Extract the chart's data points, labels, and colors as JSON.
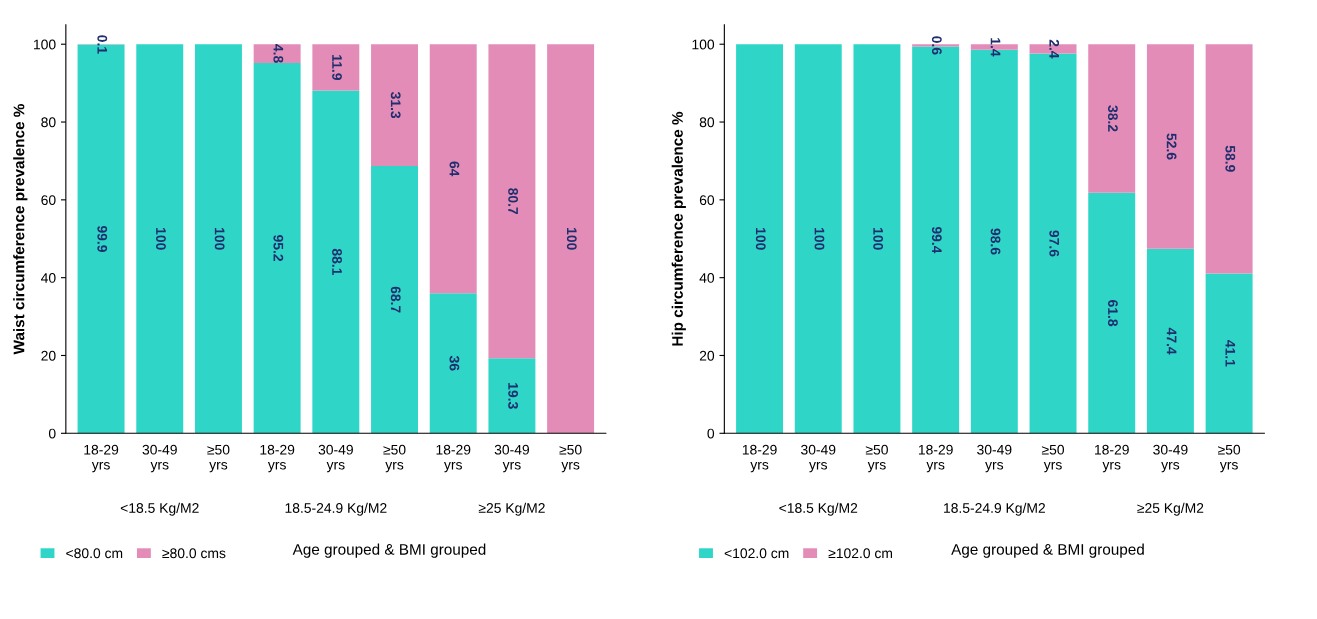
{
  "chart_data": [
    {
      "type": "bar",
      "stacked": true,
      "ylabel": "Waist circumference prevalence %",
      "xlabel": "Age grouped & BMI grouped",
      "categories": [
        "18-29\nyrs",
        "30-49\nyrs",
        "≥50\nyrs",
        "18-29\nyrs",
        "30-49\nyrs",
        "≥50\nyrs",
        "18-29\nyrs",
        "30-49\nyrs",
        "≥50\nyrs"
      ],
      "series": [
        {
          "name": "<80.0 cm",
          "color": "#2fd6c8",
          "values": [
            99.9,
            100,
            100,
            95.2,
            88.1,
            68.7,
            36,
            19.3,
            0
          ],
          "value_labels": [
            "99.9",
            "100",
            "100",
            "95.2",
            "88.1",
            "68.7",
            "36",
            "19.3",
            null
          ]
        },
        {
          "name": "≥80.0 cms",
          "color": "#e38cb8",
          "values": [
            0.1,
            0,
            0,
            4.8,
            11.9,
            31.3,
            64,
            80.7,
            100
          ],
          "value_labels": [
            "0.1",
            null,
            null,
            "4.8",
            "11.9",
            "31.3",
            "64",
            "80.7",
            "100"
          ]
        }
      ],
      "ylim": [
        0,
        105
      ],
      "yticks": [
        0,
        20,
        40,
        60,
        80,
        100
      ],
      "grid": false,
      "legend": "bottom left",
      "annotations": [
        "<18.5 Kg/M2",
        "18.5-24.9 Kg/M2",
        "≥25 Kg/M2"
      ]
    },
    {
      "type": "bar",
      "stacked": true,
      "ylabel": "Hip circumference prevalence %",
      "xlabel": "Age grouped & BMI grouped",
      "categories": [
        "18-29\nyrs",
        "30-49\nyrs",
        "≥50\nyrs",
        "18-29\nyrs",
        "30-49\nyrs",
        "≥50\nyrs",
        "18-29\nyrs",
        "30-49\nyrs",
        "≥50\nyrs"
      ],
      "series": [
        {
          "name": "<102.0 cm",
          "color": "#2fd6c8",
          "values": [
            100,
            100,
            100,
            99.4,
            98.6,
            97.6,
            61.8,
            47.4,
            41.1
          ],
          "value_labels": [
            "100",
            "100",
            "100",
            "99.4",
            "98.6",
            "97.6",
            "61.8",
            "47.4",
            "41.1"
          ]
        },
        {
          "name": "≥102.0 cm",
          "color": "#e38cb8",
          "values": [
            0,
            0,
            0,
            0.6,
            1.4,
            2.4,
            38.2,
            52.6,
            58.9
          ],
          "value_labels": [
            null,
            null,
            null,
            "0.6",
            "1.4",
            "2.4",
            "38.2",
            "52.6",
            "58.9"
          ]
        }
      ],
      "ylim": [
        0,
        105
      ],
      "yticks": [
        0,
        20,
        40,
        60,
        80,
        100
      ],
      "grid": false,
      "legend": "bottom left",
      "annotations": [
        "<18.5 Kg/M2",
        "18.5-24.9 Kg/M2",
        "≥25 Kg/M2"
      ]
    }
  ]
}
